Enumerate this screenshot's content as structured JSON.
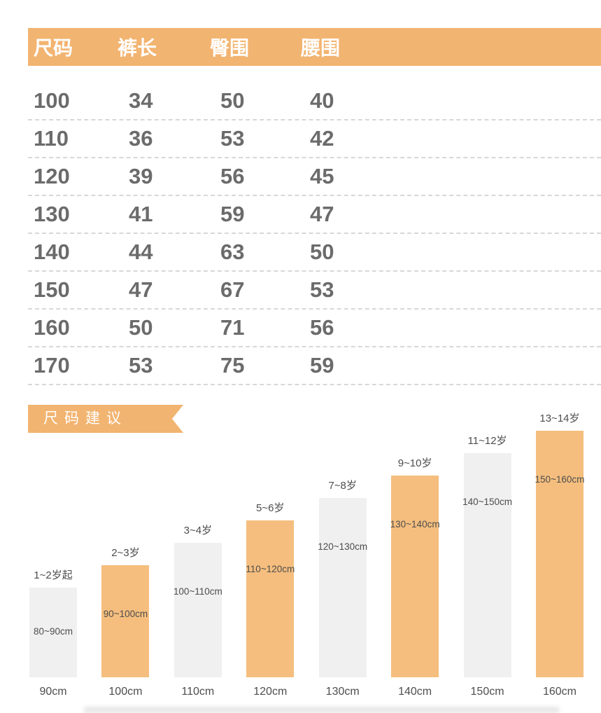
{
  "colors": {
    "accent": "#F2B471",
    "bar_gray": "#F0F0F0",
    "bar_orange": "#F5BE7E"
  },
  "size_table": {
    "headers": [
      "尺码",
      "裤长",
      "臀围",
      "腰围"
    ],
    "rows": [
      [
        "100",
        "34",
        "50",
        "40"
      ],
      [
        "110",
        "36",
        "53",
        "42"
      ],
      [
        "120",
        "39",
        "56",
        "45"
      ],
      [
        "130",
        "41",
        "59",
        "47"
      ],
      [
        "140",
        "44",
        "63",
        "50"
      ],
      [
        "150",
        "47",
        "67",
        "53"
      ],
      [
        "160",
        "50",
        "71",
        "56"
      ],
      [
        "170",
        "53",
        "75",
        "59"
      ]
    ]
  },
  "recommendation": {
    "title": "尺码建议"
  },
  "chart_data": {
    "type": "bar",
    "title": "尺码建议",
    "categories": [
      "90cm",
      "100cm",
      "110cm",
      "120cm",
      "130cm",
      "140cm",
      "150cm",
      "160cm"
    ],
    "values": [
      90,
      100,
      110,
      120,
      130,
      140,
      150,
      160
    ],
    "age_labels": [
      "1~2岁起",
      "2~3岁",
      "3~4岁",
      "5~6岁",
      "7~8岁",
      "9~10岁",
      "11~12岁",
      "13~14岁"
    ],
    "height_ranges": [
      "80~90cm",
      "90~100cm",
      "100~110cm",
      "110~120cm",
      "120~130cm",
      "130~140cm",
      "140~150cm",
      "150~160cm"
    ],
    "bar_colors": [
      "gray",
      "orange",
      "gray",
      "orange",
      "gray",
      "orange",
      "gray",
      "orange"
    ],
    "xlabel": "",
    "ylabel": "",
    "legend": "none",
    "grid": false
  }
}
